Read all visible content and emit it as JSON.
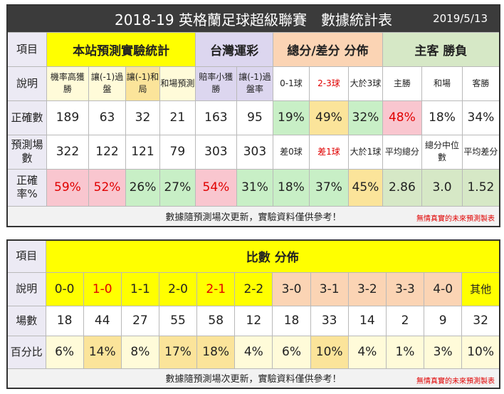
{
  "title": "2018-19 英格蘭足球超級聯賽　數據統計表",
  "date": "2019/5/13",
  "table1": {
    "col_item": "項目",
    "sections": [
      "本站預測實驗統計",
      "台灣運彩",
      "總分/差分 分佈",
      "主客 勝負"
    ],
    "row_labels": [
      "說明",
      "正確數",
      "預測場數",
      "正確率%"
    ],
    "desc": [
      "機率高獲勝",
      "讓(-1)過盤",
      "讓(-1)和局",
      "和場預測",
      "賠率小獲勝",
      "讓(-1)過盤率",
      "0-1球",
      "2-3球",
      "大於3球",
      "主勝",
      "和場",
      "客勝"
    ],
    "correct": [
      "189",
      "63",
      "32",
      "21",
      "163",
      "95",
      "19%",
      "49%",
      "32%",
      "48%",
      "18%",
      "34%"
    ],
    "count": [
      "322",
      "122",
      "121",
      "79",
      "303",
      "303",
      "差0球",
      "差1球",
      "大於1球",
      "平均總分",
      "總分中位數",
      "平均差分"
    ],
    "rate": [
      "59%",
      "52%",
      "26%",
      "27%",
      "54%",
      "31%",
      "18%",
      "37%",
      "45%",
      "2.86",
      "3.0",
      "1.52"
    ],
    "footer": "數據隨預測場次更新，實驗資料僅供參考！",
    "footer_note": "無情真實的未來預測製表"
  },
  "table2": {
    "col_item": "項目",
    "section": "比數 分佈",
    "row_labels": [
      "說明",
      "場數",
      "百分比"
    ],
    "scores": [
      "0-0",
      "1-0",
      "1-1",
      "2-0",
      "2-1",
      "2-2",
      "3-0",
      "3-1",
      "3-2",
      "3-3",
      "4-0",
      "其他"
    ],
    "counts": [
      "18",
      "44",
      "27",
      "55",
      "58",
      "12",
      "18",
      "33",
      "14",
      "2",
      "9",
      "32"
    ],
    "percents": [
      "6%",
      "14%",
      "8%",
      "17%",
      "18%",
      "4%",
      "6%",
      "10%",
      "4%",
      "1%",
      "3%",
      "10%"
    ],
    "footer": "數據隨預測場次更新，實驗資料僅供參考！",
    "footer_note": "無情真實的未來預測製表"
  },
  "colors": {
    "header_bg": "#3b3b3b",
    "highlight_yellow": "#ffff00",
    "lavender": "#dcd6ef",
    "peach": "#fbd4b4",
    "green": "#d6e8c6",
    "pink": "#f9c6cf",
    "light_green": "#c8efc6",
    "gold": "#fbe49a",
    "red_text": "#e00000"
  }
}
